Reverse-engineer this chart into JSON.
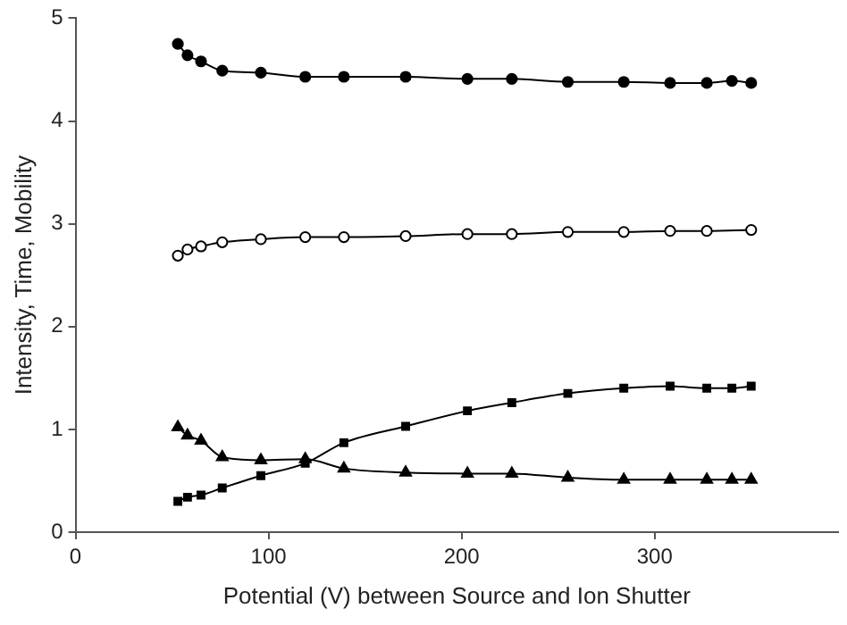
{
  "chart_data": {
    "type": "line",
    "xlabel": "Potential (V) between Source and Ion Shutter",
    "ylabel": "Intensity, Time, Mobility",
    "xlim": [
      0,
      395
    ],
    "xticks": [
      0,
      100,
      200,
      300
    ],
    "ylim": [
      0,
      5
    ],
    "yticks": [
      0,
      1,
      2,
      3,
      4,
      5
    ],
    "grid": false,
    "legend": false,
    "line_style": "solid",
    "series": [
      {
        "color": "#000000",
        "marker": "circle",
        "x": [
          53,
          58,
          65,
          76,
          96,
          119,
          139,
          171,
          203,
          226,
          255,
          284,
          308,
          327,
          340,
          350
        ],
        "values": [
          4.75,
          4.64,
          4.58,
          4.49,
          4.47,
          4.43,
          4.43,
          4.43,
          4.41,
          4.41,
          4.38,
          4.38,
          4.37,
          4.37,
          4.39,
          4.37
        ]
      },
      {
        "color": "#000000",
        "marker": "open-circle",
        "x": [
          53,
          58,
          65,
          76,
          96,
          119,
          139,
          171,
          203,
          226,
          255,
          284,
          308,
          327,
          350
        ],
        "values": [
          2.69,
          2.75,
          2.78,
          2.82,
          2.85,
          2.87,
          2.87,
          2.88,
          2.9,
          2.9,
          2.92,
          2.92,
          2.93,
          2.93,
          2.94
        ]
      },
      {
        "color": "#000000",
        "marker": "square",
        "x": [
          53,
          58,
          65,
          76,
          96,
          119,
          139,
          171,
          203,
          226,
          255,
          284,
          308,
          327,
          340,
          350
        ],
        "values": [
          0.3,
          0.34,
          0.36,
          0.43,
          0.55,
          0.67,
          0.87,
          1.03,
          1.18,
          1.26,
          1.35,
          1.4,
          1.42,
          1.4,
          1.4,
          1.42
        ]
      },
      {
        "color": "#000000",
        "marker": "triangle",
        "x": [
          53,
          58,
          65,
          76,
          96,
          119,
          139,
          171,
          203,
          226,
          255,
          284,
          308,
          327,
          340,
          350
        ],
        "values": [
          1.02,
          0.94,
          0.89,
          0.73,
          0.7,
          0.71,
          0.62,
          0.58,
          0.57,
          0.57,
          0.53,
          0.51,
          0.51,
          0.51,
          0.51,
          0.51
        ]
      }
    ]
  }
}
